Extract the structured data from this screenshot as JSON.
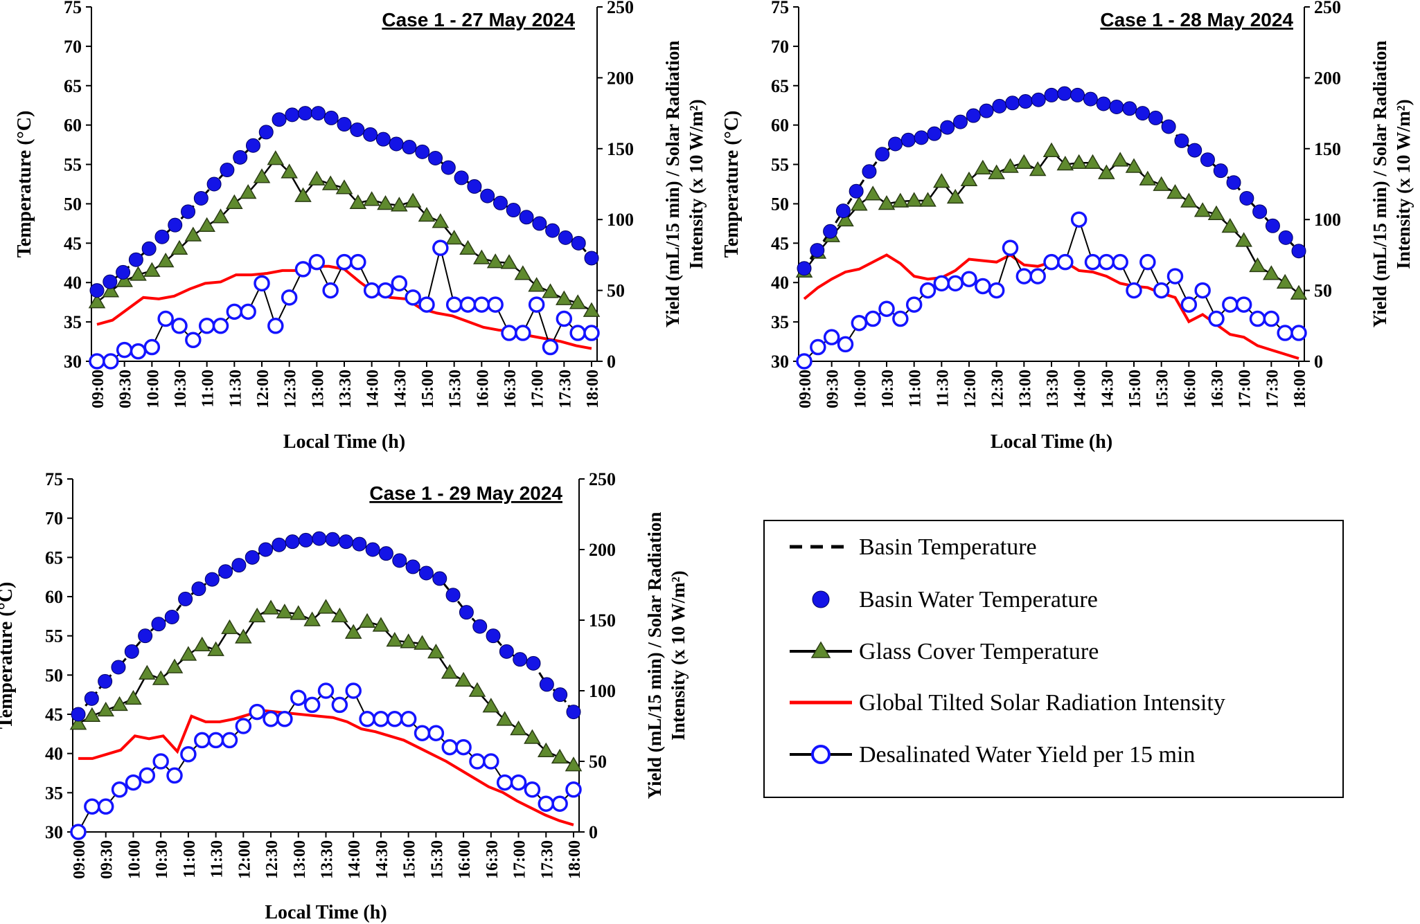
{
  "chart_data": [
    {
      "type": "line",
      "title": "Case 1 - 27 May 2024",
      "xlabel": "Local Time (h)",
      "ylabel_left": "Temperature (°C)",
      "ylabel_right_line1": "Yield (mL/15 min) / Solar Radiation",
      "ylabel_right_line2": "Intensity (x 10 W/m²)",
      "ylim_left": [
        30,
        75
      ],
      "ylim_right": [
        0,
        250
      ],
      "series": [
        {
          "name": "Basin Water Temperature",
          "axis": "left",
          "values": [
            39,
            40.1,
            41.3,
            42.9,
            44.3,
            45.8,
            47.3,
            49,
            50.7,
            52.5,
            54.3,
            55.9,
            57.4,
            59.1,
            60.7,
            61.3,
            61.5,
            61.5,
            60.9,
            60.1,
            59.4,
            58.8,
            58.2,
            57.6,
            57.2,
            56.6,
            55.8,
            54.6,
            53.3,
            52.2,
            51,
            50.1,
            49.2,
            48.3,
            47.5,
            46.6,
            45.7,
            45,
            43.1
          ]
        },
        {
          "name": "Glass Cover Temperature",
          "axis": "left",
          "values": [
            37.5,
            38.9,
            40.2,
            41,
            41.5,
            42.7,
            44.3,
            46,
            47.2,
            48.3,
            50.1,
            51.4,
            53.4,
            55.7,
            54,
            51,
            53.1,
            52.5,
            52,
            50.1,
            50.5,
            50,
            49.8,
            50.3,
            48.5,
            47.7,
            45.6,
            44.3,
            43.1,
            42.6,
            42.5,
            41.1,
            39.6,
            38.8,
            37.9,
            37.4,
            36.4
          ]
        },
        {
          "name": "Global Tilted Solar Radiation Intensity",
          "axis": "right",
          "values": [
            26,
            29,
            37,
            45,
            44,
            46,
            51,
            55,
            56,
            61,
            61,
            62,
            64,
            64,
            67,
            67,
            65,
            56,
            48,
            45,
            44,
            37,
            34,
            32,
            28,
            24,
            22,
            21,
            18,
            16,
            14,
            11,
            9
          ]
        },
        {
          "name": "Desalinated Water Yield per 15 min",
          "axis": "right",
          "values": [
            0,
            0,
            8,
            7,
            10,
            30,
            25,
            15,
            25,
            25,
            35,
            35,
            55,
            25,
            45,
            65,
            70,
            50,
            70,
            70,
            50,
            50,
            55,
            45,
            40,
            80,
            40,
            40,
            40,
            40,
            20,
            20,
            40,
            10,
            30,
            20,
            20
          ]
        }
      ]
    },
    {
      "type": "line",
      "title": "Case 1 - 28 May 2024",
      "xlabel": "Local Time (h)",
      "ylabel_left": "Temperature (°C)",
      "ylabel_right_line1": "Yield (mL/15 min) / Solar Radiation",
      "ylabel_right_line2": "Intensity (x 10 W/m²)",
      "ylim_left": [
        30,
        75
      ],
      "ylim_right": [
        0,
        250
      ],
      "series": [
        {
          "name": "Basin Water Temperature",
          "axis": "left",
          "values": [
            41.8,
            44.1,
            46.5,
            49.1,
            51.6,
            54.1,
            56.3,
            57.6,
            58.1,
            58.4,
            58.9,
            59.7,
            60.4,
            61.2,
            61.8,
            62.4,
            62.8,
            63,
            63.2,
            63.8,
            64,
            63.8,
            63.3,
            62.7,
            62.3,
            62.1,
            61.5,
            60.9,
            59.8,
            58,
            56.8,
            55.6,
            54.2,
            52.7,
            50.7,
            49,
            47.2,
            45.7,
            44
          ]
        },
        {
          "name": "Glass Cover Temperature",
          "axis": "left",
          "values": [
            41.4,
            43.8,
            45.9,
            47.9,
            49.9,
            51.2,
            50,
            50.3,
            50.4,
            50.4,
            52.8,
            50.8,
            53,
            54.5,
            53.9,
            54.7,
            55.2,
            54.3,
            56.7,
            55,
            55.2,
            55.2,
            53.9,
            55.5,
            54.7,
            53.1,
            52.4,
            51.4,
            50.3,
            49.1,
            48.7,
            47.1,
            45.3,
            42.1,
            41.1,
            40,
            38.6
          ]
        },
        {
          "name": "Global Tilted Solar Radiation Intensity",
          "axis": "right",
          "values": [
            44,
            52,
            58,
            63,
            65,
            70,
            75,
            69,
            60,
            58,
            59,
            64,
            72,
            71,
            70,
            75,
            68,
            67,
            70,
            70,
            64,
            63,
            60,
            55,
            53,
            52,
            48,
            45,
            28,
            33,
            26,
            19,
            17,
            11,
            8,
            5,
            2
          ]
        },
        {
          "name": "Desalinated Water Yield per 15 min",
          "axis": "right",
          "values": [
            0,
            10,
            17,
            12,
            27,
            30,
            37,
            30,
            40,
            50,
            55,
            55,
            58,
            53,
            50,
            80,
            60,
            60,
            70,
            70,
            100,
            70,
            70,
            70,
            50,
            70,
            50,
            60,
            40,
            50,
            30,
            40,
            40,
            30,
            30,
            20,
            20
          ]
        }
      ]
    },
    {
      "type": "line",
      "title": "Case 1 - 29 May 2024",
      "xlabel": "Local Time (h)",
      "ylabel_left": "Temperature (°C)",
      "ylabel_right_line1": "Yield (mL/15 min) / Solar Radiation",
      "ylabel_right_line2": "Intensity (x 10 W/m²)",
      "ylim_left": [
        30,
        75
      ],
      "ylim_right": [
        0,
        250
      ],
      "series": [
        {
          "name": "Basin Water Temperature",
          "axis": "left",
          "values": [
            45,
            47,
            49.2,
            51,
            53,
            55,
            56.5,
            57.4,
            59.7,
            61,
            62.2,
            63.2,
            64,
            65,
            66,
            66.6,
            67,
            67.2,
            67.4,
            67.3,
            67,
            66.7,
            66,
            65.5,
            64.6,
            63.8,
            63,
            62.3,
            60.2,
            58,
            56.2,
            55,
            53,
            52,
            51.5,
            48.8,
            47.5,
            45.3
          ]
        },
        {
          "name": "Glass Cover Temperature",
          "axis": "left",
          "values": [
            43.8,
            44.8,
            45.5,
            46.2,
            47,
            50.2,
            49.5,
            51,
            52.6,
            53.8,
            53.2,
            56,
            54.8,
            57.5,
            58.5,
            58,
            57.8,
            57,
            58.6,
            57.5,
            55.4,
            56.8,
            56.3,
            54.4,
            54.2,
            54,
            52.9,
            50.3,
            49.3,
            48,
            46,
            44.3,
            43.1,
            42,
            40.3,
            39.5,
            38.5
          ]
        },
        {
          "name": "Global Tilted Solar Radiation Intensity",
          "axis": "right",
          "values": [
            52,
            52,
            55,
            58,
            68,
            66,
            68,
            57,
            82,
            78,
            78,
            80,
            83,
            86,
            85,
            84,
            83,
            82,
            81,
            78,
            73,
            71,
            68,
            65,
            60,
            55,
            50,
            44,
            38,
            32,
            28,
            22,
            17,
            12,
            8,
            5
          ]
        },
        {
          "name": "Desalinated Water Yield per 15 min",
          "axis": "right",
          "values": [
            0,
            18,
            18,
            30,
            35,
            40,
            50,
            40,
            55,
            65,
            65,
            65,
            75,
            85,
            80,
            80,
            95,
            90,
            100,
            90,
            100,
            80,
            80,
            80,
            80,
            70,
            70,
            60,
            60,
            50,
            50,
            35,
            35,
            30,
            20,
            20,
            30
          ]
        }
      ]
    }
  ],
  "x_tick_labels": [
    "09:00",
    "09:30",
    "10:00",
    "10:30",
    "11:00",
    "11:30",
    "12:00",
    "12:30",
    "13:00",
    "13:30",
    "14:00",
    "14:30",
    "15:00",
    "15:30",
    "16:00",
    "16:30",
    "17:00",
    "17:30",
    "18:00"
  ],
  "y_left_ticks": [
    "30",
    "35",
    "40",
    "45",
    "50",
    "55",
    "60",
    "65",
    "70",
    "75"
  ],
  "y_right_ticks": [
    "0",
    "50",
    "100",
    "150",
    "200",
    "250"
  ],
  "legend": {
    "items": [
      {
        "label": "Basin Temperature",
        "style": "dashed"
      },
      {
        "label": "Basin Water Temperature",
        "style": "filled-circle"
      },
      {
        "label": "Glass Cover Temperature",
        "style": "triangle-line"
      },
      {
        "label": "Global Tilted Solar Radiation Intensity",
        "style": "red-line"
      },
      {
        "label": "Desalinated Water Yield per 15 min",
        "style": "open-circle-line"
      }
    ]
  },
  "colors": {
    "basin_water": "#1414e6",
    "glass": "#5f8a2e",
    "radiation": "#ff0000",
    "yield": "#1414ff",
    "axis": "#000000"
  }
}
